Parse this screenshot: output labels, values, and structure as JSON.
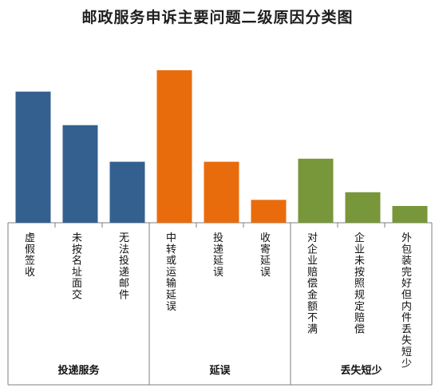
{
  "chart_data": {
    "type": "bar",
    "title": "邮政服务申诉主要问题二级原因分类图",
    "xlabel": "",
    "ylabel": "",
    "ylim": [
      0,
      100
    ],
    "grid": false,
    "legend": "none",
    "groups": [
      {
        "name": "投递服务",
        "color": "#34608f",
        "categories": [
          "虚假签收",
          "未按名址面交",
          "无法投递邮件"
        ],
        "values": [
          86,
          64,
          40
        ]
      },
      {
        "name": "延误",
        "color": "#e86c0c",
        "categories": [
          "中转或运输延误",
          "投递延误",
          "收寄延误"
        ],
        "values": [
          100,
          40,
          15
        ]
      },
      {
        "name": "丢失短少",
        "color": "#78963a",
        "categories": [
          "对企业赔偿金额不满",
          "企业未按照规定赔偿",
          "外包装完好但内件丢失短少"
        ],
        "values": [
          42,
          20,
          11
        ]
      }
    ]
  }
}
